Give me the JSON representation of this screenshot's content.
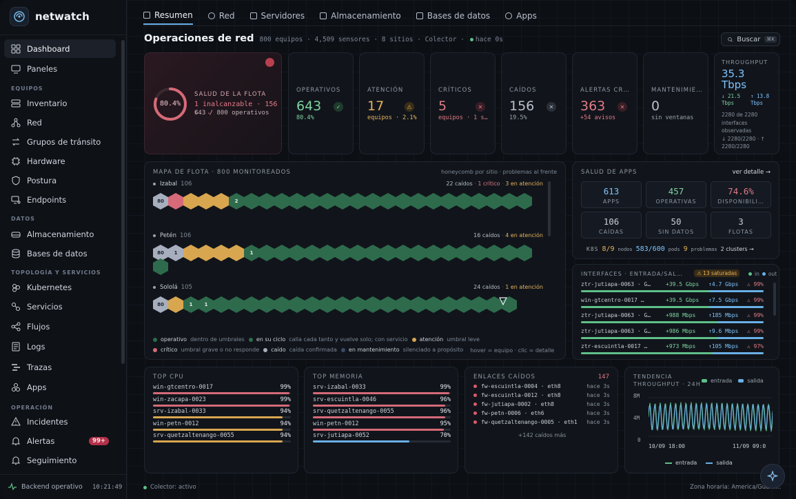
{
  "brand": {
    "name": "netwatch"
  },
  "nav": {
    "dashboard": "Dashboard",
    "paneles": "Paneles",
    "sec_equipos": "EQUIPOS",
    "inventario": "Inventario",
    "red": "Red",
    "grupos": "Grupos de tránsito",
    "hardware": "Hardware",
    "postura": "Postura",
    "endpoints": "Endpoints",
    "sec_datos": "DATOS",
    "almacenamiento": "Almacenamiento",
    "bases": "Bases de datos",
    "sec_topologia": "TOPOLOGÍA Y SERVICIOS",
    "kubernetes": "Kubernetes",
    "servicios": "Servicios",
    "flujos": "Flujos",
    "logs": "Logs",
    "trazas": "Trazas",
    "apps": "Apps",
    "sec_operacion": "OPERACIÓN",
    "incidentes": "Incidentes",
    "alertas": "Alertas",
    "alertas_badge": "99+",
    "seguimiento": "Seguimiento",
    "backend": "Backend operativo",
    "time": "10:21:49"
  },
  "tabs": [
    "Resumen",
    "Red",
    "Servidores",
    "Almacenamiento",
    "Bases de datos",
    "Apps"
  ],
  "header": {
    "title": "Operaciones de red",
    "meta": "800 equipos · 4,509 sensores · 8 sitios · Colector ·",
    "updated": "hace 0s",
    "search": "Buscar",
    "kbd": "⌘K"
  },
  "health": {
    "percent": "80.4%",
    "percent_value": 80.4,
    "label": "SALUD DE LA FLOTA",
    "line1": "1 inalcanzable · 156 c...",
    "line2": "643 / 800 operativos"
  },
  "kpis": [
    {
      "label": "OPERATIVOS",
      "value": "643",
      "sub": "80.4%",
      "color": "#7fd3a0",
      "icon": "check-icon"
    },
    {
      "label": "ATENCIÓN",
      "value": "17",
      "sub": "equipos · 2.1%",
      "color": "#e6b25d",
      "icon": "warning-icon"
    },
    {
      "label": "CRÍTICOS",
      "value": "5",
      "sub": "equipos · 1 s…",
      "color": "#e07a86",
      "icon": "x-icon"
    },
    {
      "label": "CAÍDOS",
      "value": "156",
      "sub": "19.5%",
      "color": "#b9c0cc",
      "icon": "x-icon"
    },
    {
      "label": "ALERTAS CR…",
      "value": "363",
      "sub": "+54 avisos",
      "color": "#e07a86",
      "icon": "x-icon"
    },
    {
      "label": "MANTENIMIE…",
      "value": "0",
      "sub": "sin ventanas",
      "color": "#b9c0cc",
      "icon": ""
    }
  ],
  "throughput": {
    "label": "THROUGHPUT",
    "value": "35.3",
    "unit": "Tbps",
    "down": "↓ 21.5",
    "down_unit": "Tbps",
    "up": "↑ 13.8",
    "up_unit": "Tbps",
    "l1": "2280 de 2280",
    "l2": "interfaces",
    "l3": "observadas",
    "l4": "↓ 2280/2280 · ↑",
    "l5": "2280/2280"
  },
  "fleet": {
    "title": "MAPA DE FLOTA · 800 MONITOREADOS",
    "hint": "honeycomb por sitio · problemas al frente",
    "sites": [
      {
        "name": "Izabal",
        "count": "106",
        "down": "22 caídos",
        "crit": "1 crítico",
        "attn": "3 en atención",
        "hexes": [
          [
            "c",
            "80"
          ],
          [
            "r",
            ""
          ],
          [
            "y",
            ""
          ],
          [
            "y",
            ""
          ],
          [
            "y",
            ""
          ],
          [
            "g",
            "2"
          ],
          [
            "g",
            ""
          ],
          [
            "g",
            ""
          ],
          [
            "g",
            ""
          ],
          [
            "g",
            ""
          ],
          [
            "g",
            ""
          ],
          [
            "g",
            ""
          ],
          [
            "g",
            ""
          ],
          [
            "g",
            ""
          ],
          [
            "g",
            ""
          ],
          [
            "g",
            ""
          ],
          [
            "g",
            ""
          ],
          [
            "g",
            ""
          ],
          [
            "g",
            ""
          ],
          [
            "g",
            ""
          ],
          [
            "g",
            ""
          ],
          [
            "g",
            ""
          ],
          [
            "g",
            ""
          ],
          [
            "g",
            ""
          ],
          [
            "g",
            ""
          ]
        ]
      },
      {
        "name": "Petén",
        "count": "106",
        "down": "16 caídos",
        "crit": "",
        "attn": "4 en atención",
        "hexes": [
          [
            "c",
            "80"
          ],
          [
            "c",
            "1"
          ],
          [
            "y",
            ""
          ],
          [
            "y",
            ""
          ],
          [
            "y",
            ""
          ],
          [
            "y",
            ""
          ],
          [
            "g",
            "1"
          ],
          [
            "g",
            ""
          ],
          [
            "g",
            ""
          ],
          [
            "g",
            ""
          ],
          [
            "g",
            ""
          ],
          [
            "g",
            ""
          ],
          [
            "g",
            ""
          ],
          [
            "g",
            ""
          ],
          [
            "g",
            ""
          ],
          [
            "g",
            ""
          ],
          [
            "g",
            ""
          ],
          [
            "g",
            ""
          ],
          [
            "g",
            ""
          ],
          [
            "g",
            ""
          ],
          [
            "g",
            ""
          ],
          [
            "g",
            ""
          ],
          [
            "g",
            ""
          ],
          [
            "g",
            ""
          ],
          [
            "g",
            ""
          ],
          [
            "g",
            ""
          ]
        ]
      },
      {
        "name": "Sololá",
        "count": "105",
        "down": "24 caídos",
        "crit": "",
        "attn": "1 en atención",
        "hexes": [
          [
            "c",
            "80"
          ],
          [
            "y",
            ""
          ],
          [
            "g",
            "1"
          ],
          [
            "g",
            "1"
          ],
          [
            "g",
            ""
          ],
          [
            "g",
            ""
          ],
          [
            "g",
            ""
          ],
          [
            "g",
            ""
          ],
          [
            "g",
            ""
          ],
          [
            "g",
            ""
          ],
          [
            "g",
            ""
          ],
          [
            "g",
            ""
          ],
          [
            "g",
            ""
          ],
          [
            "g",
            ""
          ],
          [
            "g",
            ""
          ],
          [
            "g",
            ""
          ],
          [
            "g",
            ""
          ],
          [
            "g",
            ""
          ],
          [
            "g",
            ""
          ],
          [
            "g",
            ""
          ],
          [
            "g",
            ""
          ],
          [
            "g",
            ""
          ],
          [
            "g",
            ""
          ],
          [
            "g",
            ""
          ]
        ]
      }
    ],
    "legend1": [
      [
        "#2e6b4c",
        "operativo",
        "dentro de umbrales"
      ],
      [
        "#2e6b4c",
        "en su ciclo",
        "calla cada tanto y vuelve solo; con servicio"
      ],
      [
        "#d9a650",
        "atención",
        "umbral leve"
      ]
    ],
    "legend2": [
      [
        "#d66a78",
        "crítico",
        "umbral grave o no responde"
      ],
      [
        "#a7afbe",
        "caído",
        "caída confirmada"
      ],
      [
        "#3b4a66",
        "en mantenimiento",
        "silenciado a propósito"
      ]
    ],
    "legend_tail": "hover = equipo · clic = detalle"
  },
  "apps": {
    "title": "SALUD DE APPS",
    "link": "ver detalle →",
    "tiles": [
      [
        "613",
        "APPS",
        "#7ec4ff"
      ],
      [
        "457",
        "OPERATIVAS",
        "#7fd3a0"
      ],
      [
        "74.6%",
        "DISPONIBILI…",
        "#e07a86"
      ],
      [
        "106",
        "CAÍDAS",
        "#c6ccd6"
      ],
      [
        "50",
        "SIN DATOS",
        "#c6ccd6"
      ],
      [
        "3",
        "FLOTAS",
        "#c6ccd6"
      ]
    ],
    "k8s": "K8S",
    "nodes": "8/9",
    "nodes_l": "nodos",
    "pods": "583/600",
    "pods_l": "pods",
    "probs": "9",
    "probs_l": "problemas",
    "clusters": "2 clusters →"
  },
  "interfaces": {
    "title": "INTERFACES · ENTRADA/SAL…",
    "sat": "13 saturadas",
    "in": "in",
    "out": "out",
    "rows": [
      [
        "ztr-jutiapa-0063 · G…",
        "+39.5 Gbps",
        "↑4.7 Gbps",
        "99%",
        0.7,
        0.3
      ],
      [
        "win-gtcentro-0017 …",
        "+39.5 Gbps",
        "↑7.5 Gbps",
        "99%",
        0.7,
        0.3
      ],
      [
        "ztr-jutiapa-0063 · G…",
        "+988 Mbps",
        "↑185 Mbps",
        "99%",
        0.75,
        0.25
      ],
      [
        "ztr-jutiapa-0063 · G…",
        "+986 Mbps",
        "↑9.6 Mbps",
        "99%",
        0.75,
        0.25
      ],
      [
        "ztr-escuintla-0017 …",
        "+973 Mbps",
        "↑105 Mbps",
        "97%",
        0.72,
        0.28
      ]
    ]
  },
  "top_cpu": {
    "title": "TOP CPU",
    "rows": [
      [
        "win-gtcentro-0017",
        "99%",
        0.99,
        "#d66a78"
      ],
      [
        "win-zacapa-0023",
        "99%",
        0.99,
        "#d66a78"
      ],
      [
        "srv-izabal-0033",
        "94%",
        0.94,
        "#d9a650"
      ],
      [
        "win-petn-0012",
        "94%",
        0.94,
        "#d9a650"
      ],
      [
        "srv-quetzaltenango-0055",
        "94%",
        0.94,
        "#d9a650"
      ]
    ]
  },
  "top_mem": {
    "title": "TOP MEMORIA",
    "rows": [
      [
        "srv-izabal-0033",
        "99%",
        0.99,
        "#d66a78"
      ],
      [
        "srv-escuintla-0046",
        "96%",
        0.96,
        "#d66a78"
      ],
      [
        "srv-quetzaltenango-0055",
        "96%",
        0.96,
        "#d66a78"
      ],
      [
        "win-petn-0012",
        "95%",
        0.95,
        "#d66a78"
      ],
      [
        "srv-jutiapa-0052",
        "70%",
        0.7,
        "#6ab0e6"
      ]
    ]
  },
  "links": {
    "title": "ENLACES CAÍDOS",
    "count": "147",
    "rows": [
      [
        "fw-escuintla-0004 · eth8",
        "hace 3s"
      ],
      [
        "fw-escuintla-0012 · eth8",
        "hace 3s"
      ],
      [
        "fw-jutiapa-0002 · eth8",
        "hace 3s"
      ],
      [
        "fw-petn-0006 · eth6",
        "hace 3s"
      ],
      [
        "fw-quetzaltenango-0005 · eth1",
        "hace 3s"
      ]
    ],
    "more": "+142 caídos más"
  },
  "trend": {
    "title1": "TENDENCIA",
    "title2": "THROUGHPUT · 24H",
    "in": "entrada",
    "out": "salida",
    "y": [
      "8M",
      "4M",
      "0"
    ],
    "x": [
      "10/09 18:00",
      "11/09 09:0"
    ],
    "leg_in": "entrada",
    "leg_out": "salida"
  },
  "footer": {
    "collector": "Colector: activo",
    "tz": "Zona horaria: America/Guate…"
  }
}
